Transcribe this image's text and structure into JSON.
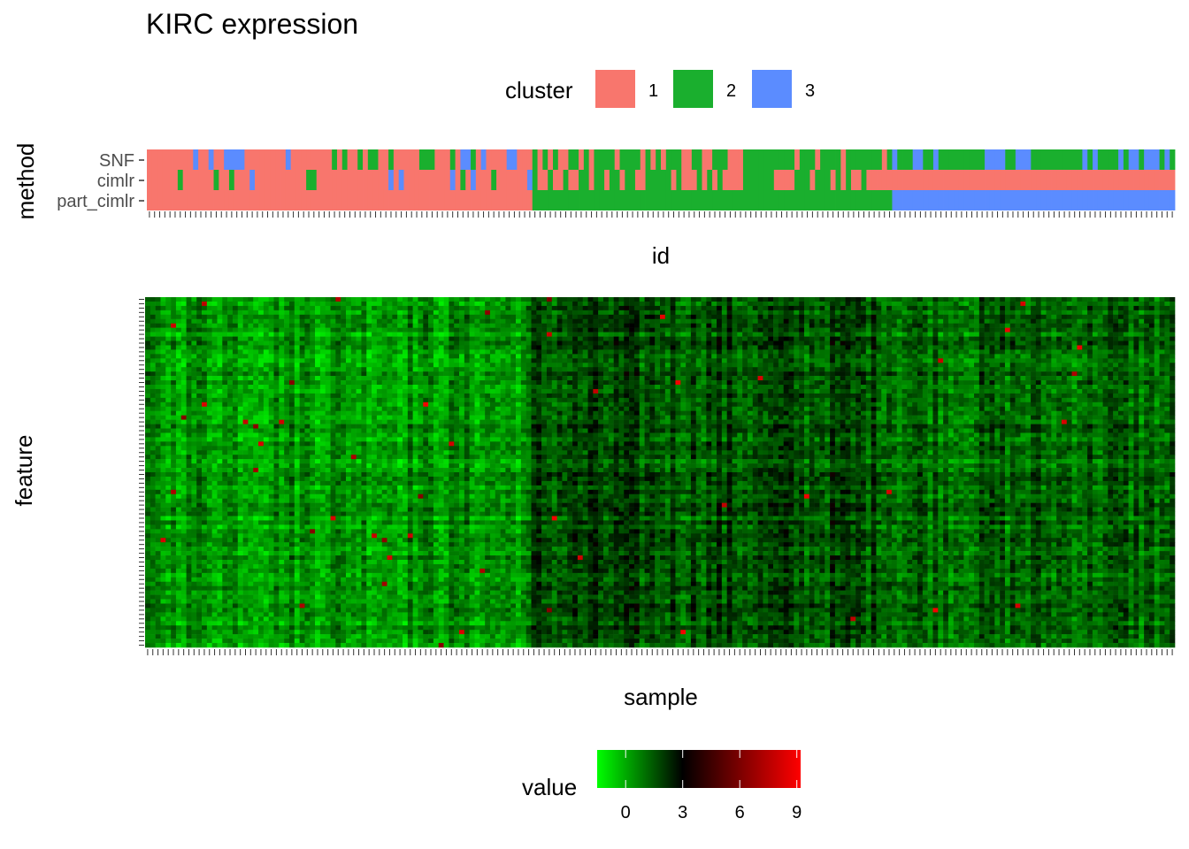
{
  "title": "KIRC expression",
  "colors": {
    "cluster_1": "#F8766D",
    "cluster_2": "#1AAF2E",
    "cluster_3": "#5B8CFF",
    "gradient_low": "#00FF00",
    "gradient_mid": "#000000",
    "gradient_high": "#FF0000"
  },
  "cluster_legend": {
    "title": "cluster",
    "entries": [
      "1",
      "2",
      "3"
    ]
  },
  "value_legend": {
    "title": "value",
    "ticks": [
      "0",
      "3",
      "6",
      "9"
    ],
    "tick_values": [
      0,
      3,
      6,
      9
    ],
    "range": [
      -1.5,
      9.2
    ]
  },
  "chart_data": [
    {
      "type": "heatmap",
      "panel": "cluster-assignments",
      "xlabel": "id",
      "ylabel": "method",
      "methods": [
        "SNF",
        "cimlr",
        "part_cimlr"
      ],
      "n_samples": 200,
      "part_cimlr_blocks": [
        {
          "cluster": 1,
          "count": 75
        },
        {
          "cluster": 2,
          "count": 70
        },
        {
          "cluster": 3,
          "count": 55
        }
      ],
      "cimlr_blocks": [
        {
          "cluster": 1,
          "count": 145
        },
        {
          "cluster": 1,
          "count": 55
        }
      ],
      "snf_blocks": [
        {
          "cluster": 1,
          "count": 35
        },
        {
          "cluster": 2,
          "count": 110
        },
        {
          "cluster": 3,
          "count": 55
        }
      ],
      "snf_note_mixed": "cluster 1/3 mixed within first block, 2/1 within second, 3/2 within third"
    },
    {
      "type": "heatmap",
      "panel": "expression",
      "xlabel": "sample",
      "ylabel": "feature",
      "n_samples": 200,
      "n_features": 80,
      "value_range": [
        -1.5,
        9.2
      ]
    }
  ]
}
